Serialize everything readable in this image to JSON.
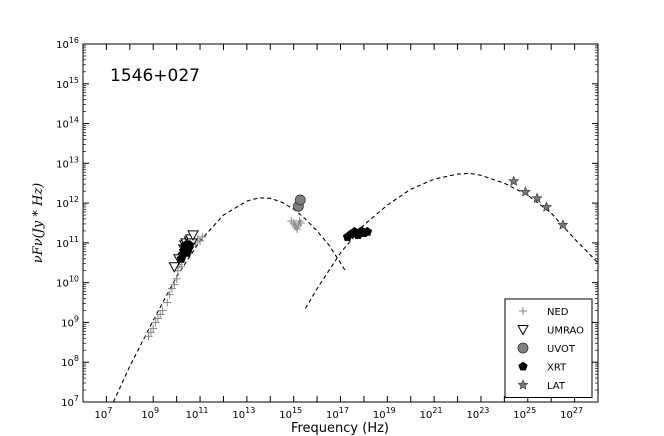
{
  "chart_data": {
    "type": "scatter",
    "xscale": "log",
    "yscale": "log",
    "xlim": [
      1000000.0,
      1e+28
    ],
    "ylim": [
      10000000.0,
      1e+16
    ],
    "xlabel": "Frequency (Hz)",
    "ylabel": "νFν(Jy * Hz)",
    "annotation": "1546+027",
    "x_ticks": [
      {
        "base": "10",
        "exp": "7",
        "value": 7
      },
      {
        "base": "10",
        "exp": "9",
        "value": 9
      },
      {
        "base": "10",
        "exp": "11",
        "value": 11
      },
      {
        "base": "10",
        "exp": "13",
        "value": 13
      },
      {
        "base": "10",
        "exp": "15",
        "value": 15
      },
      {
        "base": "10",
        "exp": "17",
        "value": 17
      },
      {
        "base": "10",
        "exp": "19",
        "value": 19
      },
      {
        "base": "10",
        "exp": "21",
        "value": 21
      },
      {
        "base": "10",
        "exp": "23",
        "value": 23
      },
      {
        "base": "10",
        "exp": "25",
        "value": 25
      },
      {
        "base": "10",
        "exp": "27",
        "value": 27
      }
    ],
    "y_ticks": [
      {
        "base": "10",
        "exp": "7",
        "value": 7
      },
      {
        "base": "10",
        "exp": "8",
        "value": 8
      },
      {
        "base": "10",
        "exp": "9",
        "value": 9
      },
      {
        "base": "10",
        "exp": "10",
        "value": 10
      },
      {
        "base": "10",
        "exp": "11",
        "value": 11
      },
      {
        "base": "10",
        "exp": "12",
        "value": 12
      },
      {
        "base": "10",
        "exp": "13",
        "value": 13
      },
      {
        "base": "10",
        "exp": "14",
        "value": 14
      },
      {
        "base": "10",
        "exp": "15",
        "value": 15
      },
      {
        "base": "10",
        "exp": "16",
        "value": 16
      }
    ],
    "legend": {
      "position": "lower-right",
      "entries": [
        {
          "name": "NED",
          "marker": "plus",
          "color": "#888888"
        },
        {
          "name": "UMRAO",
          "marker": "triangle-down",
          "color": "#000000"
        },
        {
          "name": "UVOT",
          "marker": "circle",
          "color": "#808080"
        },
        {
          "name": "XRT",
          "marker": "pentagon",
          "color": "#000000"
        },
        {
          "name": "LAT",
          "marker": "star",
          "color": "#777777"
        }
      ]
    },
    "series": [
      {
        "name": "NED",
        "marker": "plus",
        "color": "#888888",
        "log_x": [
          8.8,
          8.9,
          9.0,
          9.1,
          9.2,
          9.3,
          9.4,
          9.6,
          9.7,
          9.8,
          9.9,
          10.0,
          10.05,
          10.1,
          10.15,
          10.2,
          10.3,
          10.35,
          10.4,
          10.5,
          10.6,
          10.7,
          10.8,
          10.9,
          11.0,
          11.1,
          14.9,
          15.0,
          15.05,
          15.1,
          15.15,
          15.2,
          15.25,
          15.3
        ],
        "log_y": [
          8.65,
          8.75,
          8.85,
          9.0,
          9.1,
          9.2,
          9.3,
          9.5,
          9.7,
          9.85,
          9.95,
          10.1,
          10.3,
          10.45,
          10.6,
          10.4,
          10.7,
          10.9,
          10.75,
          10.9,
          11.0,
          10.95,
          11.0,
          11.1,
          11.05,
          11.15,
          11.55,
          11.5,
          11.45,
          11.4,
          11.35,
          11.45,
          11.55,
          11.5
        ]
      },
      {
        "name": "UMRAO",
        "marker": "triangle-down",
        "color": "#000000",
        "log_x": [
          9.9,
          10.1,
          10.3,
          10.35,
          10.4,
          10.45,
          10.5,
          10.55,
          10.6,
          10.65,
          10.7
        ],
        "log_y": [
          10.4,
          10.6,
          10.85,
          10.95,
          11.0,
          10.9,
          10.8,
          11.05,
          11.1,
          11.0,
          11.2
        ]
      },
      {
        "name": "XRT_radio_cluster",
        "legend": false,
        "marker": "pentagon",
        "color": "#000000",
        "log_x": [
          10.2,
          10.25,
          10.3,
          10.35,
          10.4,
          10.45,
          10.5,
          10.55
        ],
        "log_y": [
          10.6,
          10.7,
          10.8,
          10.9,
          10.95,
          10.75,
          10.85,
          10.95
        ]
      },
      {
        "name": "UVOT",
        "marker": "circle",
        "color": "#808080",
        "log_x": [
          15.2,
          15.28
        ],
        "log_y": [
          11.92,
          12.08
        ]
      },
      {
        "name": "XRT",
        "marker": "pentagon",
        "color": "#000000",
        "log_x": [
          17.3,
          17.45,
          17.6,
          17.75,
          17.9,
          18.0,
          18.15
        ],
        "log_y": [
          11.15,
          11.22,
          11.28,
          11.2,
          11.3,
          11.25,
          11.28
        ]
      },
      {
        "name": "LAT",
        "marker": "star",
        "color": "#777777",
        "log_x": [
          24.4,
          24.9,
          25.4,
          25.8,
          26.5
        ],
        "log_y": [
          12.55,
          12.28,
          12.12,
          11.9,
          11.45
        ]
      }
    ],
    "curves": [
      {
        "name": "synchrotron-model",
        "style": "dashed",
        "color": "#000000",
        "log_x": [
          7.3,
          8.0,
          9.0,
          10.0,
          11.0,
          12.0,
          13.0,
          13.5,
          14.0,
          14.5,
          15.0,
          15.5,
          16.0,
          16.5,
          17.0,
          17.2
        ],
        "log_y": [
          7.0,
          7.9,
          9.05,
          10.15,
          11.05,
          11.7,
          12.05,
          12.13,
          12.12,
          12.02,
          11.85,
          11.6,
          11.3,
          10.95,
          10.5,
          10.3
        ]
      },
      {
        "name": "inverse-compton-model",
        "style": "dashed",
        "color": "#000000",
        "log_x": [
          15.5,
          16.0,
          17.0,
          18.0,
          19.0,
          20.0,
          21.0,
          22.0,
          22.5,
          23.0,
          24.0,
          25.0,
          26.0,
          27.0,
          28.0
        ],
        "log_y": [
          9.35,
          9.85,
          10.75,
          11.45,
          11.95,
          12.35,
          12.6,
          12.73,
          12.75,
          12.7,
          12.5,
          12.2,
          11.75,
          11.1,
          10.5
        ]
      }
    ]
  }
}
